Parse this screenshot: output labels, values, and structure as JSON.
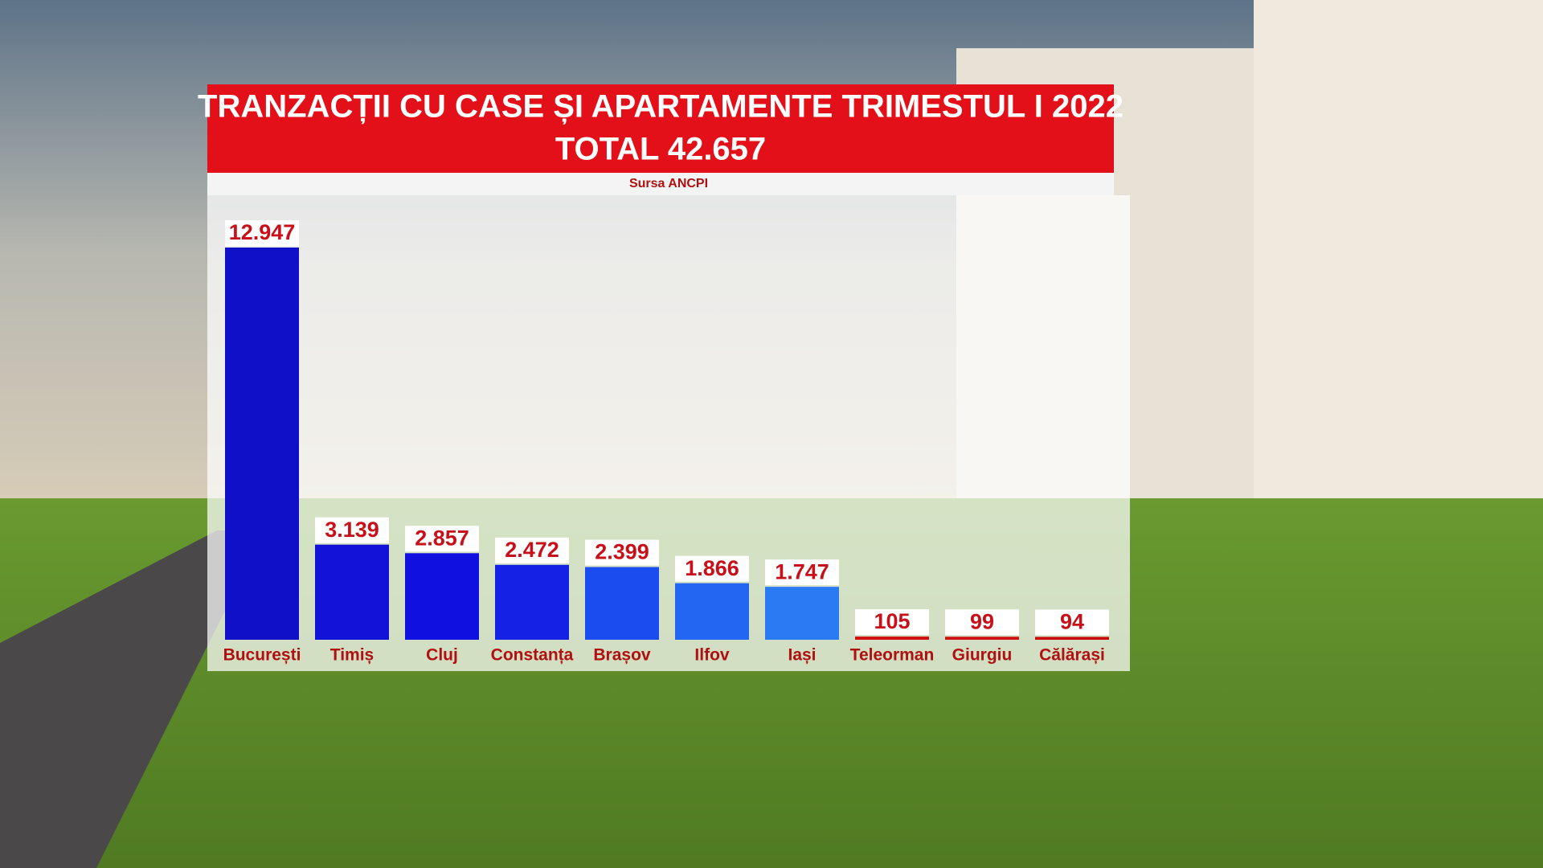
{
  "chart_data": {
    "type": "bar",
    "title": "TRANZACȚII CU CASE ȘI APARTAMENTE TRIMESTUL I 2022",
    "subtitle": "TOTAL 42.657",
    "source": "Sursa ANCPI",
    "categories": [
      "București",
      "Timiș",
      "Cluj",
      "Constanța",
      "Brașov",
      "Ilfov",
      "Iași",
      "Teleorman",
      "Giurgiu",
      "Călărași"
    ],
    "values": [
      12947,
      3139,
      2857,
      2472,
      2399,
      1866,
      1747,
      105,
      99,
      94
    ],
    "value_labels": [
      "12.947",
      "3.139",
      "2.857",
      "2.472",
      "2.399",
      "1.866",
      "1.747",
      "105",
      "99",
      "94"
    ],
    "colors": [
      "#1010c8",
      "#1212d8",
      "#1010e0",
      "#1422e6",
      "#1a4cf0",
      "#2266f2",
      "#2a7af4",
      "#d01010",
      "#d01010",
      "#c80808"
    ]
  }
}
